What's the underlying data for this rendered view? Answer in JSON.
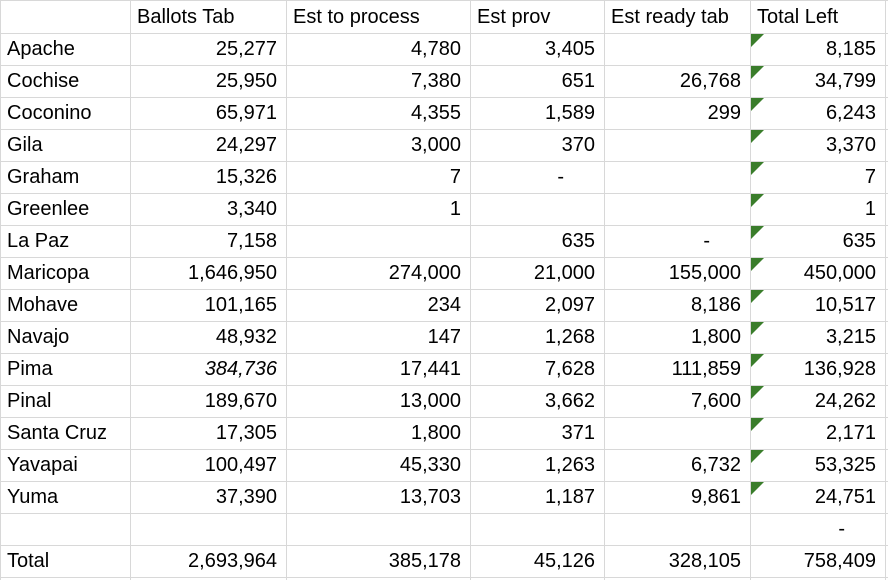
{
  "colors": {
    "grid_line": "#d8d8d8",
    "flag_green": "#3a7d2b",
    "text": "#000000",
    "background": "#ffffff"
  },
  "table": {
    "column_headers": [
      "",
      "Ballots Tab",
      "Est to process",
      "Est prov",
      "Est ready tab",
      "Total Left"
    ],
    "rows": [
      {
        "county": "Apache",
        "ballots_tab": "25,277",
        "est_to_process": "4,780",
        "est_prov": "3,405",
        "est_ready_tab": "",
        "total_left": "8,185",
        "flag": true,
        "italic_ballots": false
      },
      {
        "county": "Cochise",
        "ballots_tab": "25,950",
        "est_to_process": "7,380",
        "est_prov": "651",
        "est_ready_tab": "26,768",
        "total_left": "34,799",
        "flag": true,
        "italic_ballots": false
      },
      {
        "county": "Coconino",
        "ballots_tab": "65,971",
        "est_to_process": "4,355",
        "est_prov": "1,589",
        "est_ready_tab": "299",
        "total_left": "6,243",
        "flag": true,
        "italic_ballots": false
      },
      {
        "county": "Gila",
        "ballots_tab": "24,297",
        "est_to_process": "3,000",
        "est_prov": "370",
        "est_ready_tab": "",
        "total_left": "3,370",
        "flag": true,
        "italic_ballots": false
      },
      {
        "county": "Graham",
        "ballots_tab": "15,326",
        "est_to_process": "7",
        "est_prov": "-",
        "est_ready_tab": "",
        "total_left": "7",
        "flag": true,
        "italic_ballots": false
      },
      {
        "county": "Greenlee",
        "ballots_tab": "3,340",
        "est_to_process": "1",
        "est_prov": "",
        "est_ready_tab": "",
        "total_left": "1",
        "flag": true,
        "italic_ballots": false
      },
      {
        "county": "La Paz",
        "ballots_tab": "7,158",
        "est_to_process": "",
        "est_prov": "635",
        "est_ready_tab": "-",
        "total_left": "635",
        "flag": true,
        "italic_ballots": false
      },
      {
        "county": "Maricopa",
        "ballots_tab": "1,646,950",
        "est_to_process": "274,000",
        "est_prov": "21,000",
        "est_ready_tab": "155,000",
        "total_left": "450,000",
        "flag": true,
        "italic_ballots": false
      },
      {
        "county": "Mohave",
        "ballots_tab": "101,165",
        "est_to_process": "234",
        "est_prov": "2,097",
        "est_ready_tab": "8,186",
        "total_left": "10,517",
        "flag": true,
        "italic_ballots": false
      },
      {
        "county": "Navajo",
        "ballots_tab": "48,932",
        "est_to_process": "147",
        "est_prov": "1,268",
        "est_ready_tab": "1,800",
        "total_left": "3,215",
        "flag": true,
        "italic_ballots": false
      },
      {
        "county": "Pima",
        "ballots_tab": "384,736",
        "est_to_process": "17,441",
        "est_prov": "7,628",
        "est_ready_tab": "111,859",
        "total_left": "136,928",
        "flag": true,
        "italic_ballots": true
      },
      {
        "county": "Pinal",
        "ballots_tab": "189,670",
        "est_to_process": "13,000",
        "est_prov": "3,662",
        "est_ready_tab": "7,600",
        "total_left": "24,262",
        "flag": true,
        "italic_ballots": false
      },
      {
        "county": "Santa Cruz",
        "ballots_tab": "17,305",
        "est_to_process": "1,800",
        "est_prov": "371",
        "est_ready_tab": "",
        "total_left": "2,171",
        "flag": true,
        "italic_ballots": false
      },
      {
        "county": "Yavapai",
        "ballots_tab": "100,497",
        "est_to_process": "45,330",
        "est_prov": "1,263",
        "est_ready_tab": "6,732",
        "total_left": "53,325",
        "flag": true,
        "italic_ballots": false
      },
      {
        "county": "Yuma",
        "ballots_tab": "37,390",
        "est_to_process": "13,703",
        "est_prov": "1,187",
        "est_ready_tab": "9,861",
        "total_left": "24,751",
        "flag": true,
        "italic_ballots": false
      },
      {
        "county": "",
        "ballots_tab": "",
        "est_to_process": "",
        "est_prov": "",
        "est_ready_tab": "",
        "total_left": "-",
        "flag": false,
        "italic_ballots": false
      },
      {
        "county": "Total",
        "ballots_tab": "2,693,964",
        "est_to_process": "385,178",
        "est_prov": "45,126",
        "est_ready_tab": "328,105",
        "total_left": "758,409",
        "flag": false,
        "italic_ballots": false
      }
    ]
  }
}
